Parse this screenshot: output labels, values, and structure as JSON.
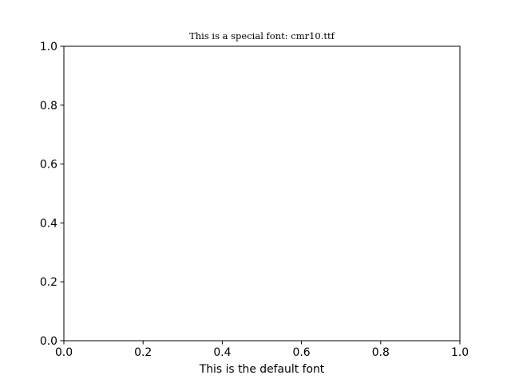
{
  "chart_data": {
    "type": "line",
    "title": "This is a special font: cmr10.ttf",
    "xlabel": "This is the default font",
    "ylabel": "",
    "xlim": [
      0,
      1
    ],
    "ylim": [
      0,
      1
    ],
    "xticks": [
      "0.0",
      "0.2",
      "0.4",
      "0.6",
      "0.8",
      "1.0"
    ],
    "yticks": [
      "0.0",
      "0.2",
      "0.4",
      "0.6",
      "0.8",
      "1.0"
    ],
    "series": [],
    "grid": false
  }
}
